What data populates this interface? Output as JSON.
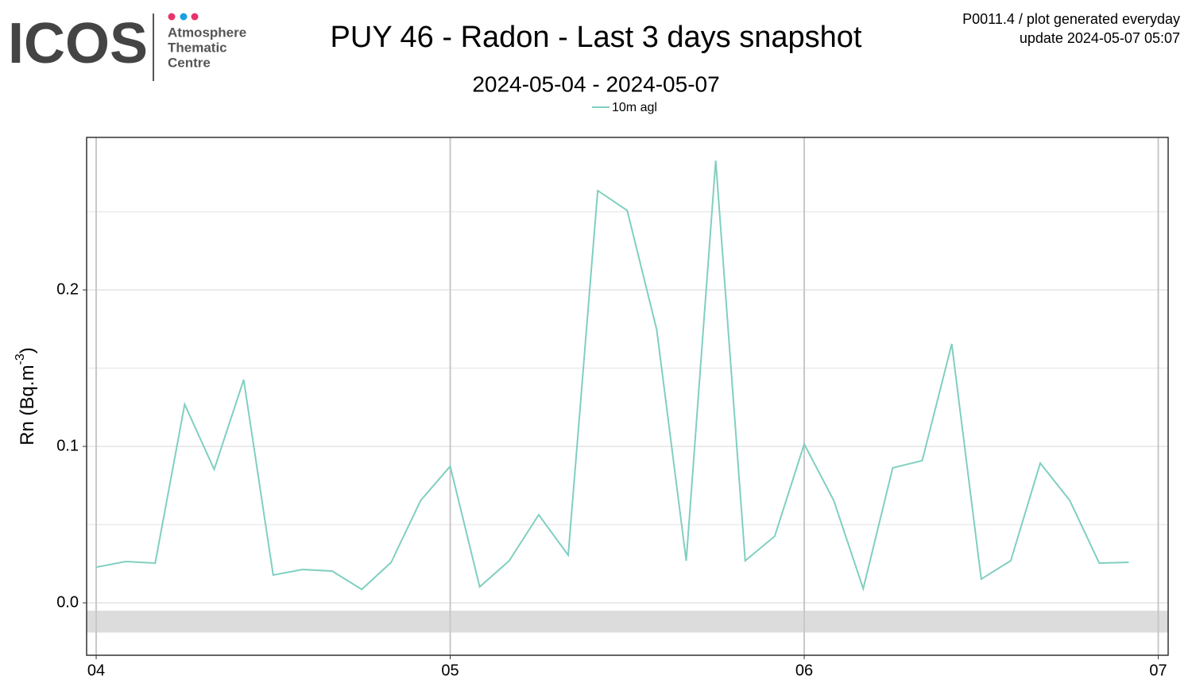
{
  "logo": {
    "name": "ICOS",
    "lines": [
      "Atmosphere",
      "Thematic",
      "Centre"
    ]
  },
  "chart_data": {
    "type": "line",
    "title": "PUY 46 - Radon - Last 3 days snapshot",
    "subtitle": "2024-05-04 - 2024-05-07",
    "annotations": [
      "P0011.4 / plot generated everyday",
      "update  2024-05-07 05:07"
    ],
    "ylabel": [
      "Rn (Bq.m",
      "-3",
      ")"
    ],
    "x": [
      4,
      4.0833,
      4.1667,
      4.25,
      4.3333,
      4.4167,
      4.5,
      4.5833,
      4.6667,
      4.75,
      4.8333,
      4.9167,
      5,
      5.0833,
      5.1667,
      5.25,
      5.3333,
      5.4167,
      5.5,
      5.5833,
      5.6667,
      5.75,
      5.8333,
      5.9167,
      6,
      6.0833,
      6.1667,
      6.25,
      6.3333,
      6.4167,
      6.5,
      6.5833,
      6.6667,
      6.75,
      6.8333,
      6.9167
    ],
    "series": [
      {
        "name": "10m agl",
        "color": "#80cfc1",
        "values": [
          0.0228,
          0.0264,
          0.0254,
          0.1269,
          0.0853,
          0.1426,
          0.0178,
          0.0213,
          0.0203,
          0.0086,
          0.0259,
          0.0655,
          0.0873,
          0.0102,
          0.0269,
          0.0563,
          0.0305,
          0.2635,
          0.2508,
          0.1746,
          0.0269,
          0.2827,
          0.0269,
          0.0426,
          0.1015,
          0.0655,
          0.0091,
          0.0863,
          0.0909,
          0.1655,
          0.0152,
          0.0269,
          0.0893,
          0.0655,
          0.0254,
          0.0259
        ]
      }
    ],
    "shaded_band": {
      "ymin": -0.019,
      "ymax": -0.005,
      "color": "#dcdcdc"
    },
    "xlim": [
      3.973,
      7.028
    ],
    "xticks": [
      {
        "value": 4,
        "label": "04"
      },
      {
        "value": 5,
        "label": "05"
      },
      {
        "value": 6,
        "label": "06"
      },
      {
        "value": 7,
        "label": "07"
      }
    ],
    "ylim": [
      -0.0335,
      0.2975
    ],
    "yticks": [
      {
        "value": 0,
        "label": "0.0"
      },
      0.1,
      0.2
    ],
    "yminor": [
      0.05,
      0.15,
      0.25
    ],
    "grid": true,
    "legend": "top"
  }
}
